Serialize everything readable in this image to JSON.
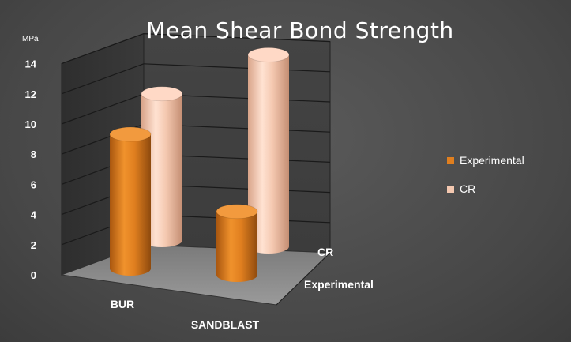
{
  "chart_data": {
    "type": "bar",
    "title": "Mean Shear Bond Strength",
    "ylabel": "MPa",
    "categories": [
      "BUR",
      "SANDBLAST"
    ],
    "series": [
      {
        "name": "Experimental",
        "values": [
          8.9,
          4.2
        ],
        "color": "#e07f1f"
      },
      {
        "name": "CR",
        "values": [
          9.7,
          12.7
        ],
        "color": "#f4c8b0"
      }
    ],
    "depth_labels": [
      "CR",
      "Experimental"
    ],
    "ylim": [
      0,
      14
    ],
    "yticks": [
      "0",
      "2",
      "4",
      "6",
      "8",
      "10",
      "12",
      "14"
    ],
    "grid": true,
    "legend_position": "right"
  }
}
